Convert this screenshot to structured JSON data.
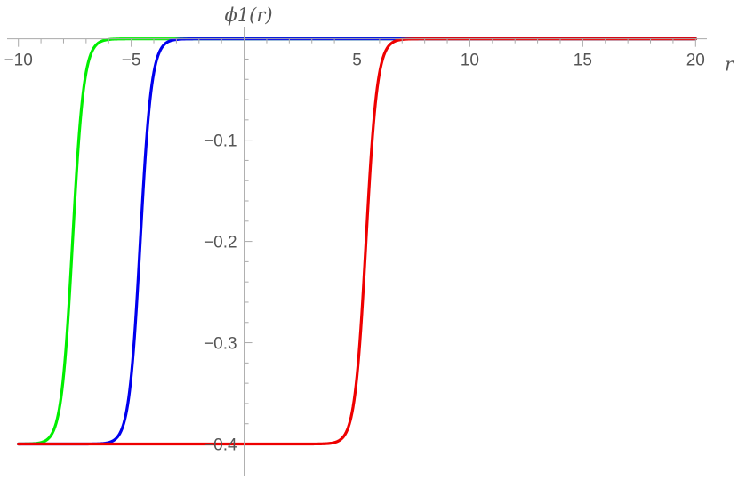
{
  "chart_data": {
    "type": "line",
    "ylabel": "ϕ1(r)",
    "xlabel": "r",
    "xlim": [
      -10.5,
      20.5
    ],
    "ylim": [
      -0.425,
      0.012
    ],
    "x_ticks": [
      -10,
      -5,
      5,
      10,
      15,
      20
    ],
    "x_tick_labels": [
      "−10",
      "−5",
      "5",
      "10",
      "15",
      "20"
    ],
    "y_ticks": [
      -0.1,
      -0.2,
      -0.3,
      -0.4
    ],
    "y_tick_labels": [
      "−0.1",
      "−0.2",
      "−0.3",
      "−0.4"
    ],
    "grid": false,
    "series": [
      {
        "color": "#00ee00",
        "min_value": -0.4,
        "max_value": 0,
        "midpoint_r": -7.6,
        "width": 0.5
      },
      {
        "color": "#0000ee",
        "min_value": -0.4,
        "max_value": 0,
        "midpoint_r": -4.6,
        "width": 0.5
      },
      {
        "color": "#ee0000",
        "min_value": -0.4,
        "max_value": 0,
        "midpoint_r": 5.4,
        "width": 0.5
      }
    ]
  }
}
